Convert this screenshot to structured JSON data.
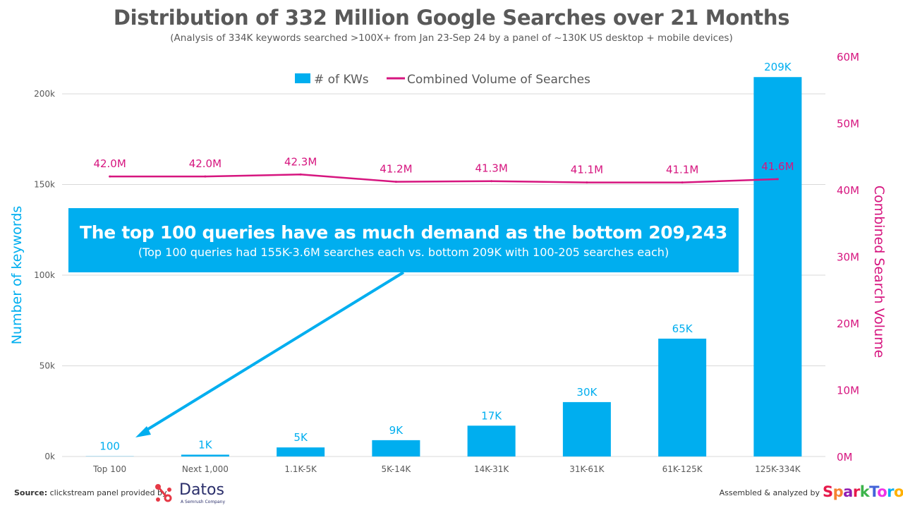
{
  "chart_data": {
    "type": "bar+line",
    "title": "Distribution of 332 Million Google Searches over 21 Months",
    "subtitle": "(Analysis of 334K keywords searched >100X+ from Jan 23-Sep 24 by a panel of ~130K US desktop + mobile devices)",
    "categories": [
      "Top 100",
      "Next 1,000",
      "1.1K-5K",
      "5K-14K",
      "14K-31K",
      "31K-61K",
      "61K-125K",
      "125K-334K"
    ],
    "series": [
      {
        "name": "# of KWs",
        "type": "bar",
        "axis": "left",
        "color": "#00AEEF",
        "values": [
          100,
          1000,
          5000,
          9000,
          17000,
          30000,
          65000,
          209243
        ],
        "labels": [
          "100",
          "1K",
          "5K",
          "9K",
          "17K",
          "30K",
          "65K",
          "209K"
        ]
      },
      {
        "name": "Combined Volume of Searches",
        "type": "line",
        "axis": "right",
        "color": "#D6157F",
        "values": [
          42.0,
          42.0,
          42.3,
          41.2,
          41.3,
          41.1,
          41.1,
          41.6
        ],
        "labels": [
          "42.0M",
          "42.0M",
          "42.3M",
          "41.2M",
          "41.3M",
          "41.1M",
          "41.1M",
          "41.6M"
        ]
      }
    ],
    "ylabel_left": "Number of keywords",
    "ylabel_right": "Combined Search Volume",
    "ylim_left": [
      0,
      200000
    ],
    "yticks_left": [
      "0k",
      "50k",
      "100k",
      "150k",
      "200k"
    ],
    "ylim_right": [
      0,
      60
    ],
    "yticks_right": [
      "0M",
      "10M",
      "20M",
      "30M",
      "40M",
      "50M",
      "60M"
    ],
    "grid": true,
    "legend": "top-center",
    "annotation": {
      "headline": "The top 100 queries have as much demand as the bottom 209,243",
      "detail": "(Top 100 queries had 155K-3.6M searches each vs. bottom 209K with 100-205 searches each)",
      "points_to": "Top 100"
    }
  },
  "footer": {
    "source_label": "Source:",
    "source_text": " clickstream panel provided by",
    "datos_logo": "Datos",
    "datos_tagline": "A Semrush Company",
    "credit_text": "Assembled & analyzed by",
    "sparktoro_logo": "SparkToro"
  }
}
